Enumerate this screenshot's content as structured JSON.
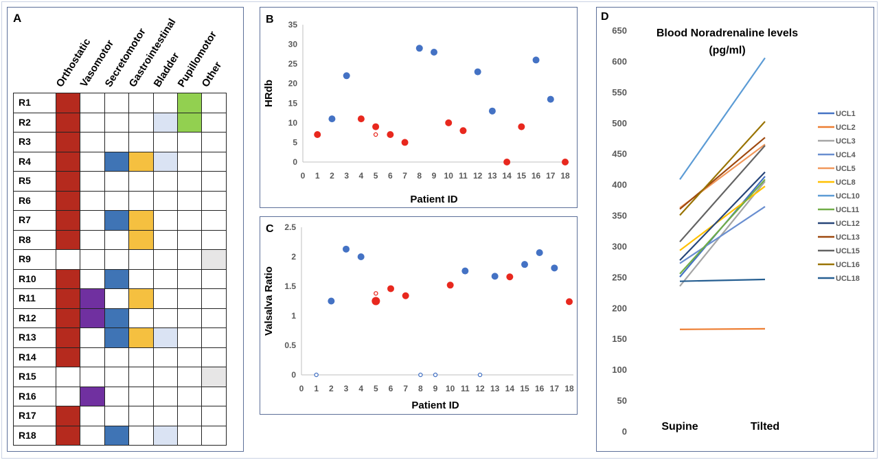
{
  "panel_a": {
    "label": "A",
    "columns": [
      "Orthostatic",
      "Vasomotor",
      "Secretomotor",
      "Gastrointestinal",
      "Bladder",
      "Pupillomotor",
      "Other"
    ],
    "column_colors": [
      "#B52A1E",
      "#7030A0",
      "#3F74B5",
      "#F5C040",
      "#DAE3F3",
      "#92D050",
      "#E7E6E6"
    ],
    "rows": [
      {
        "id": "R1",
        "cells": [
          1,
          0,
          0,
          0,
          0,
          1,
          0
        ]
      },
      {
        "id": "R2",
        "cells": [
          1,
          0,
          0,
          0,
          1,
          1,
          0
        ]
      },
      {
        "id": "R3",
        "cells": [
          1,
          0,
          0,
          0,
          0,
          0,
          0
        ]
      },
      {
        "id": "R4",
        "cells": [
          1,
          0,
          1,
          1,
          1,
          0,
          0
        ]
      },
      {
        "id": "R5",
        "cells": [
          1,
          0,
          0,
          0,
          0,
          0,
          0
        ]
      },
      {
        "id": "R6",
        "cells": [
          1,
          0,
          0,
          0,
          0,
          0,
          0
        ]
      },
      {
        "id": "R7",
        "cells": [
          1,
          0,
          1,
          1,
          0,
          0,
          0
        ]
      },
      {
        "id": "R8",
        "cells": [
          1,
          0,
          0,
          1,
          0,
          0,
          0
        ]
      },
      {
        "id": "R9",
        "cells": [
          0,
          0,
          0,
          0,
          0,
          0,
          1
        ]
      },
      {
        "id": "R10",
        "cells": [
          1,
          0,
          1,
          0,
          0,
          0,
          0
        ]
      },
      {
        "id": "R11",
        "cells": [
          1,
          1,
          0,
          1,
          0,
          0,
          0
        ]
      },
      {
        "id": "R12",
        "cells": [
          1,
          1,
          1,
          0,
          0,
          0,
          0
        ]
      },
      {
        "id": "R13",
        "cells": [
          1,
          0,
          1,
          1,
          1,
          0,
          0
        ]
      },
      {
        "id": "R14",
        "cells": [
          1,
          0,
          0,
          0,
          0,
          0,
          0
        ]
      },
      {
        "id": "R15",
        "cells": [
          0,
          0,
          0,
          0,
          0,
          0,
          1
        ]
      },
      {
        "id": "R16",
        "cells": [
          0,
          1,
          0,
          0,
          0,
          0,
          0
        ]
      },
      {
        "id": "R17",
        "cells": [
          1,
          0,
          0,
          0,
          0,
          0,
          0
        ]
      },
      {
        "id": "R18",
        "cells": [
          1,
          0,
          1,
          0,
          1,
          0,
          0
        ]
      }
    ]
  },
  "chart_data": [
    {
      "panel": "B",
      "type": "scatter",
      "xlabel": "Patient ID",
      "ylabel": "HRdb",
      "xlim": [
        0,
        18
      ],
      "ylim": [
        0,
        35
      ],
      "xticks": [
        0,
        1,
        2,
        3,
        4,
        5,
        6,
        7,
        8,
        9,
        10,
        11,
        12,
        13,
        14,
        15,
        16,
        17,
        18
      ],
      "yticks": [
        0,
        5,
        10,
        15,
        20,
        25,
        30,
        35
      ],
      "grid": false,
      "colors": {
        "blue": "#4472C4",
        "red": "#E8281E"
      },
      "points": [
        {
          "x": 1,
          "y": 7,
          "color": "red",
          "filled": true
        },
        {
          "x": 2,
          "y": 11,
          "color": "blue",
          "filled": true
        },
        {
          "x": 3,
          "y": 22,
          "color": "blue",
          "filled": true
        },
        {
          "x": 4,
          "y": 11,
          "color": "red",
          "filled": true
        },
        {
          "x": 5,
          "y": 9,
          "color": "red",
          "filled": true
        },
        {
          "x": 5,
          "y": 7,
          "color": "red",
          "filled": false
        },
        {
          "x": 6,
          "y": 7,
          "color": "red",
          "filled": true
        },
        {
          "x": 7,
          "y": 5,
          "color": "red",
          "filled": true
        },
        {
          "x": 8,
          "y": 29,
          "color": "blue",
          "filled": true
        },
        {
          "x": 9,
          "y": 28,
          "color": "blue",
          "filled": true
        },
        {
          "x": 10,
          "y": 10,
          "color": "red",
          "filled": true
        },
        {
          "x": 11,
          "y": 8,
          "color": "red",
          "filled": true
        },
        {
          "x": 12,
          "y": 23,
          "color": "blue",
          "filled": true
        },
        {
          "x": 13,
          "y": 13,
          "color": "blue",
          "filled": true
        },
        {
          "x": 14,
          "y": 0,
          "color": "red",
          "filled": true
        },
        {
          "x": 15,
          "y": 9,
          "color": "red",
          "filled": true
        },
        {
          "x": 16,
          "y": 26,
          "color": "blue",
          "filled": true
        },
        {
          "x": 17,
          "y": 16,
          "color": "blue",
          "filled": true
        },
        {
          "x": 18,
          "y": 0,
          "color": "red",
          "filled": true
        }
      ]
    },
    {
      "panel": "C",
      "type": "scatter",
      "xlabel": "Patient ID",
      "ylabel": "Valsalva Ratio",
      "xlim": [
        0,
        18
      ],
      "ylim": [
        0,
        2.5
      ],
      "xticks": [
        0,
        1,
        2,
        3,
        4,
        5,
        6,
        7,
        8,
        9,
        10,
        11,
        12,
        13,
        14,
        15,
        16,
        17,
        18
      ],
      "yticks": [
        0,
        0.5,
        1,
        1.5,
        2,
        2.5
      ],
      "grid": false,
      "colors": {
        "blue": "#4472C4",
        "red": "#E8281E"
      },
      "points": [
        {
          "x": 1,
          "y": 0,
          "color": "blue",
          "filled": false
        },
        {
          "x": 2,
          "y": 1.25,
          "color": "blue",
          "filled": true
        },
        {
          "x": 3,
          "y": 2.13,
          "color": "blue",
          "filled": true
        },
        {
          "x": 4,
          "y": 2.0,
          "color": "blue",
          "filled": true
        },
        {
          "x": 5,
          "y": 1.25,
          "color": "red",
          "filled": true
        },
        {
          "x": 5,
          "y": 1.38,
          "color": "red",
          "filled": false
        },
        {
          "x": 6,
          "y": 1.46,
          "color": "red",
          "filled": true
        },
        {
          "x": 7,
          "y": 1.34,
          "color": "red",
          "filled": true
        },
        {
          "x": 8,
          "y": 0,
          "color": "blue",
          "filled": false
        },
        {
          "x": 9,
          "y": 0,
          "color": "blue",
          "filled": false
        },
        {
          "x": 10,
          "y": 1.52,
          "color": "red",
          "filled": true
        },
        {
          "x": 11,
          "y": 1.76,
          "color": "blue",
          "filled": true
        },
        {
          "x": 12,
          "y": 0,
          "color": "blue",
          "filled": false
        },
        {
          "x": 13,
          "y": 1.67,
          "color": "blue",
          "filled": true
        },
        {
          "x": 14,
          "y": 1.66,
          "color": "red",
          "filled": true
        },
        {
          "x": 15,
          "y": 1.87,
          "color": "blue",
          "filled": true
        },
        {
          "x": 16,
          "y": 2.07,
          "color": "blue",
          "filled": true
        },
        {
          "x": 17,
          "y": 1.81,
          "color": "blue",
          "filled": true
        },
        {
          "x": 18,
          "y": 1.24,
          "color": "red",
          "filled": true
        }
      ]
    },
    {
      "panel": "D",
      "type": "line",
      "title": [
        "Blood Noradrenaline levels",
        "(pg/ml)"
      ],
      "categories": [
        "Supine",
        "Tilted"
      ],
      "ylim": [
        0,
        650
      ],
      "yticks": [
        0,
        50,
        100,
        150,
        200,
        250,
        300,
        350,
        400,
        450,
        500,
        550,
        600,
        650
      ],
      "grid": false,
      "legend": "right",
      "series": [
        {
          "name": "UCL1",
          "color": "#4472C4",
          "values": [
            250,
            413
          ]
        },
        {
          "name": "UCL2",
          "color": "#ED7D31",
          "values": [
            165,
            166
          ]
        },
        {
          "name": "UCL3",
          "color": "#A5A5A5",
          "values": [
            235,
            405
          ]
        },
        {
          "name": "UCL4",
          "color": "#698ED0",
          "values": [
            272,
            364
          ]
        },
        {
          "name": "UCL5",
          "color": "#F1975A",
          "values": [
            362,
            465
          ]
        },
        {
          "name": "UCL8",
          "color": "#FFC000",
          "values": [
            293,
            397
          ]
        },
        {
          "name": "UCL10",
          "color": "#5B9BD5",
          "values": [
            408,
            605
          ]
        },
        {
          "name": "UCL11",
          "color": "#70AD47",
          "values": [
            255,
            408
          ]
        },
        {
          "name": "UCL12",
          "color": "#264478",
          "values": [
            277,
            420
          ]
        },
        {
          "name": "UCL13",
          "color": "#9E480E",
          "values": [
            360,
            476
          ]
        },
        {
          "name": "UCL15",
          "color": "#636363",
          "values": [
            307,
            463
          ]
        },
        {
          "name": "UCL16",
          "color": "#997300",
          "values": [
            350,
            502
          ]
        },
        {
          "name": "UCL18",
          "color": "#255E91",
          "values": [
            243,
            246
          ]
        }
      ]
    }
  ]
}
